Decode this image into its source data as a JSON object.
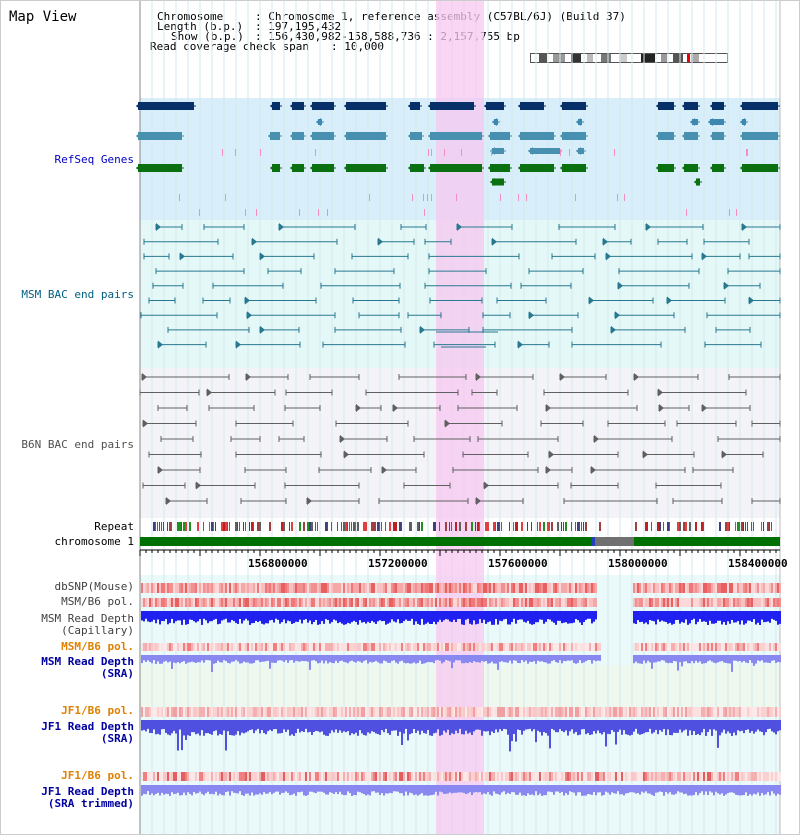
{
  "title": "Map View",
  "header": {
    "chromosome_key": "Chromosome",
    "chromosome_val": ": Chromosome 1, reference assembly (C57BL/6J) (Build 37)",
    "length_key": "Length (b.p.)",
    "length_val": ": 197,195,432",
    "show_key": "Show (b.p.)",
    "show_val": ": 156,430,982-158,588,736 : 2,157,755 bp",
    "coverage_key": "Read coverage check span",
    "coverage_val": ": 10,000"
  },
  "tracks": {
    "refseq": "RefSeq Genes",
    "msm_bac": "MSM BAC end pairs",
    "b6n_bac": "B6N BAC end pairs",
    "repeat": "Repeat",
    "chromosome": "chromosome 1",
    "dbsnp": "dbSNP(Mouse)",
    "msm_b6_pol_1": "MSM/B6 pol.",
    "msm_read_depth_cap_1": "MSM Read Depth",
    "msm_read_depth_cap_2": "(Capillary)",
    "msm_b6_pol_2": "MSM/B6 pol.",
    "msm_read_depth_sra_1": "MSM Read Depth",
    "msm_read_depth_sra_2": "(SRA)",
    "jf1_b6_pol_1": "JF1/B6 pol.",
    "jf1_read_depth_sra_1": "JF1 Read Depth",
    "jf1_read_depth_sra_2": "(SRA)",
    "jf1_b6_pol_2": "JF1/B6 pol.",
    "jf1_read_depth_trim_1": "JF1 Read Depth",
    "jf1_read_depth_trim_2": "(SRA trimmed)"
  },
  "axis": {
    "ticks": [
      "156800000",
      "157200000",
      "157600000",
      "158000000",
      "158400000"
    ]
  },
  "colors": {
    "refseq_label": "#0000c0",
    "msm_bac_label": "#006080",
    "b6n_bac_label": "#505050",
    "pol_label_orange": "#e08000",
    "depth_label_blue": "#0000a0",
    "highlight": "#f7c8f0"
  }
}
